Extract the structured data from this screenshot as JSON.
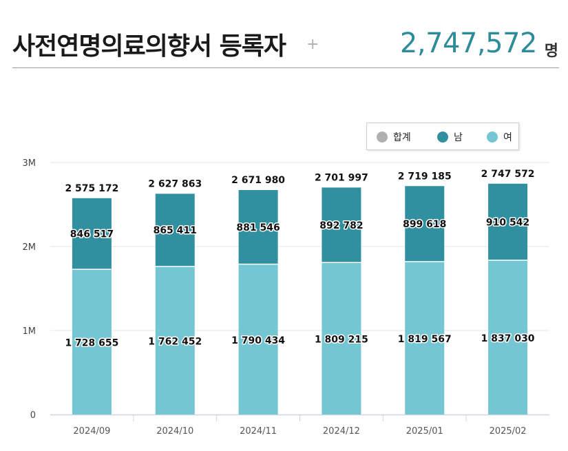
{
  "header": {
    "title": "사전연명의료의향서 등록자",
    "plus": "+",
    "total": "2,747,572",
    "unit": "명"
  },
  "colors": {
    "male": "#3190a0",
    "female": "#74c6d3",
    "total": "#b0b0b0",
    "title_accent": "#2e8b9a"
  },
  "chart_data": {
    "type": "bar",
    "stacked": true,
    "categories": [
      "2024/09",
      "2024/10",
      "2024/11",
      "2024/12",
      "2025/01",
      "2025/02"
    ],
    "series": [
      {
        "name": "여",
        "values": [
          1728655,
          1762452,
          1790434,
          1809215,
          1819567,
          1837030
        ],
        "labels": [
          "1 728 655",
          "1 762 452",
          "1 790 434",
          "1 809 215",
          "1 819 567",
          "1 837 030"
        ]
      },
      {
        "name": "남",
        "values": [
          846517,
          865411,
          881546,
          892782,
          899618,
          910542
        ],
        "labels": [
          "846 517",
          "865 411",
          "881 546",
          "892 782",
          "899 618",
          "910 542"
        ]
      }
    ],
    "totals": {
      "name": "합계",
      "values": [
        2575172,
        2627863,
        2671980,
        2701997,
        2719185,
        2747572
      ],
      "labels": [
        "2 575 172",
        "2 627 863",
        "2 671 980",
        "2 701 997",
        "2 719 185",
        "2 747 572"
      ]
    },
    "legend": [
      "합계",
      "남",
      "여"
    ],
    "y_ticks": [
      0,
      1000000,
      2000000,
      3000000
    ],
    "y_tick_labels": [
      "0",
      "1M",
      "2M",
      "3M"
    ],
    "ylim": [
      0,
      3000000
    ],
    "grid": true,
    "legend_position": "top-right"
  }
}
